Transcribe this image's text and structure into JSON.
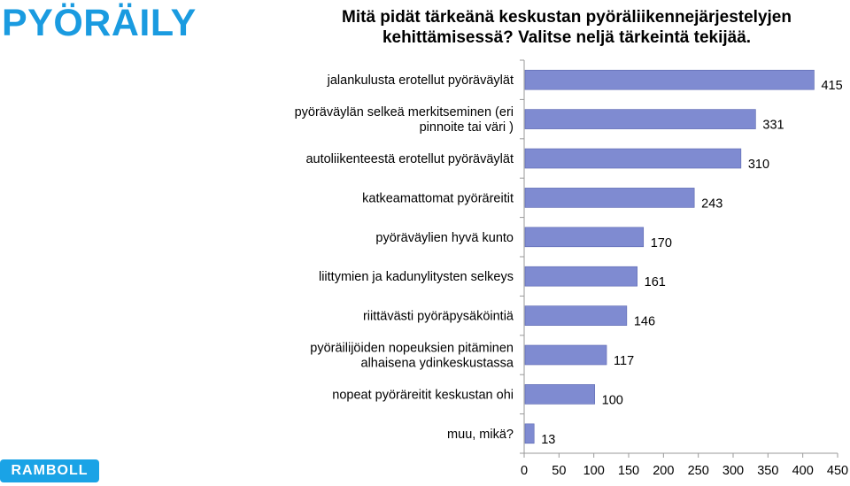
{
  "header": {
    "section_title": "PYÖRÄILY",
    "question_line1": "Mitä pidät tärkeänä keskustan pyöräliikennejärjestelyjen",
    "question_line2": "kehittämisessä? Valitse neljä tärkeintä tekijää."
  },
  "logo": {
    "text": "RAMBOLL"
  },
  "colors": {
    "bar": "#7f8bd1",
    "bar_border": "#5a66b0",
    "title": "#1a9be0",
    "logo": "#1aa3e6"
  },
  "chart_data": {
    "type": "bar",
    "orientation": "horizontal",
    "categories": [
      [
        "jalankulusta erotellut pyöräväylät"
      ],
      [
        "pyöräväylän selkeä merkitseminen (eri",
        "pinnoite tai väri )"
      ],
      [
        "autoliikenteestä erotellut pyöräväylät"
      ],
      [
        "katkeamattomat pyöräreitit"
      ],
      [
        "pyöräväylien hyvä kunto"
      ],
      [
        "liittymien ja kadunylitysten selkeys"
      ],
      [
        "riittävästi pyöräpysäköintiä"
      ],
      [
        "pyöräilijöiden nopeuksien pitäminen",
        "alhaisena ydinkeskustassa"
      ],
      [
        "nopeat pyöräreitit keskustan ohi"
      ],
      [
        "muu, mikä?"
      ]
    ],
    "values": [
      415,
      331,
      310,
      243,
      170,
      161,
      146,
      117,
      100,
      13
    ],
    "xlim": [
      0,
      450
    ],
    "xticks": [
      0,
      50,
      100,
      150,
      200,
      250,
      300,
      350,
      400,
      450
    ],
    "grid": false,
    "legend": "none"
  }
}
